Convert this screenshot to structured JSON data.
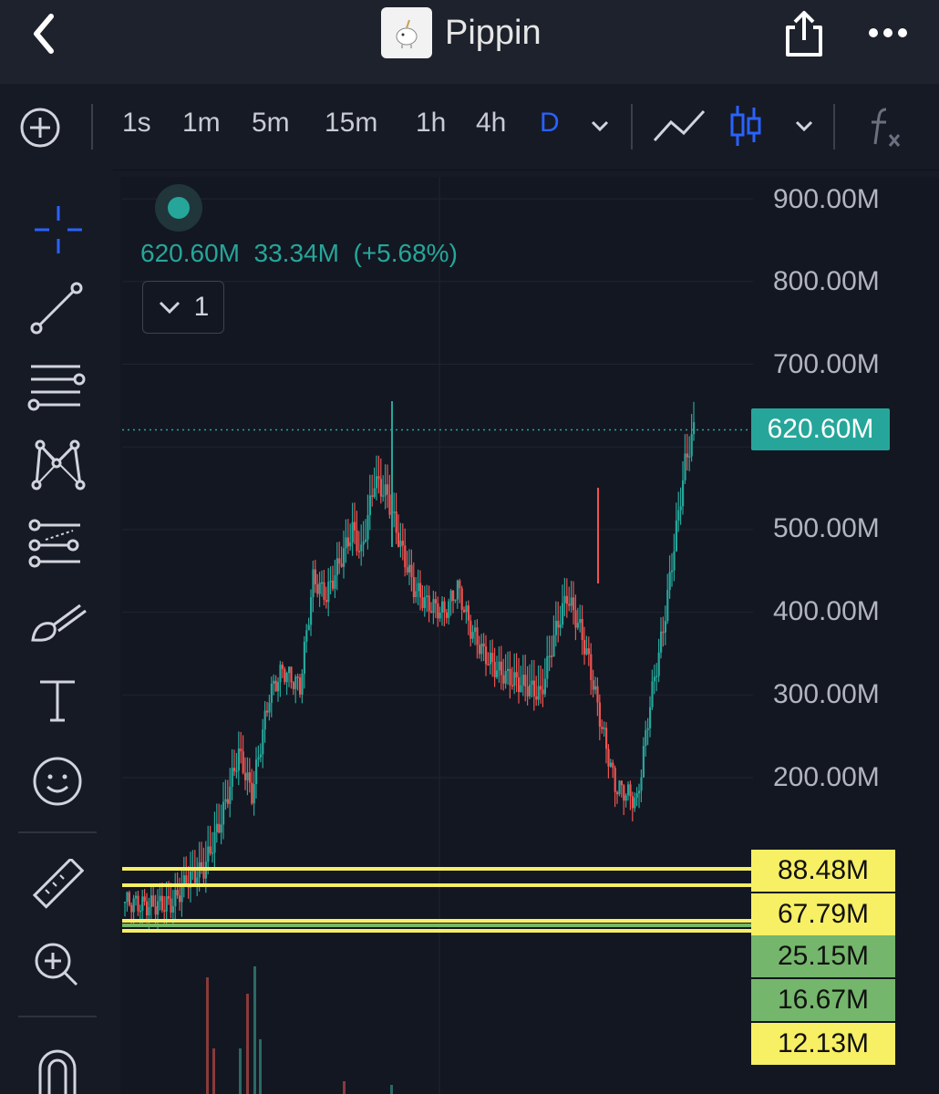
{
  "header": {
    "title": "Pippin"
  },
  "toolbar": {
    "intervals": [
      "1s",
      "1m",
      "5m",
      "15m",
      "1h",
      "4h",
      "D"
    ],
    "selected_interval": "D",
    "accent": "#2962ff"
  },
  "legend": {
    "price": "620.60M",
    "change": "33.34M",
    "change_pct": "(+5.68%)",
    "indicator_count": "1"
  },
  "price_axis": {
    "labels": [
      "900.00M",
      "800.00M",
      "700.00M",
      "500.00M",
      "400.00M",
      "300.00M",
      "200.00M"
    ],
    "current_price_label": "620.60M"
  },
  "price_tags": [
    {
      "label": "88.48M",
      "color": "yellow"
    },
    {
      "label": "67.79M",
      "color": "yellow"
    },
    {
      "label": "25.15M",
      "color": "green"
    },
    {
      "label": "16.67M",
      "color": "green"
    },
    {
      "label": "12.13M",
      "color": "yellow"
    }
  ],
  "colors": {
    "up": "#26a69a",
    "down": "#ef5350",
    "bg": "#131722",
    "yellow": "#f7ef64",
    "green": "#74b66b"
  }
}
